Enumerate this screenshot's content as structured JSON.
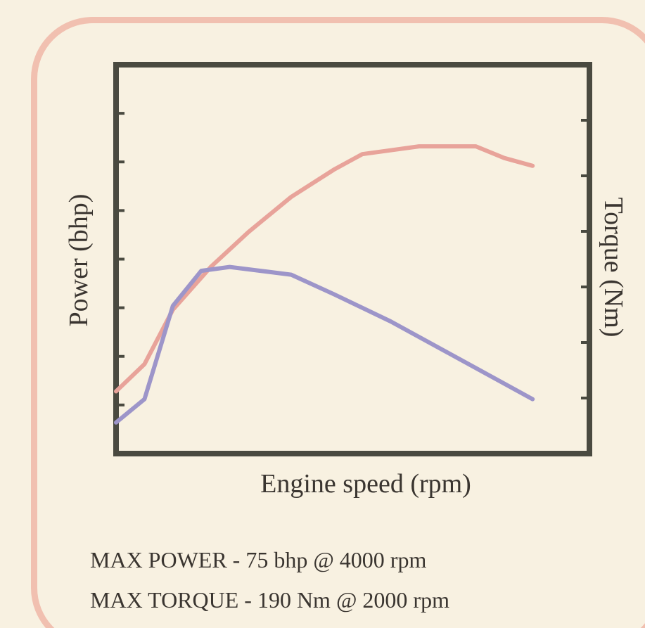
{
  "chart_data": {
    "type": "line",
    "title": "",
    "xlabel": "Engine speed (rpm)",
    "ylabel_left": "Power (bhp)",
    "ylabel_right": "Torque (Nm)",
    "x_tick_labels_visible": false,
    "y_tick_labels_visible": false,
    "grid": false,
    "legend": "none",
    "xlim": [
      0,
      100
    ],
    "ylim_left": [
      0,
      100
    ],
    "ylim_right": [
      0,
      100
    ],
    "series": [
      {
        "axis": "left",
        "color": "#e8a39a",
        "x": [
          0,
          6,
          12,
          20,
          28,
          37,
          46,
          52,
          58,
          64,
          70,
          76,
          82,
          88
        ],
        "y": [
          16,
          23,
          37,
          48,
          57,
          66,
          73,
          77,
          78,
          79,
          79,
          79,
          76,
          74
        ]
      },
      {
        "axis": "right",
        "color": "#9d95c9",
        "x": [
          0,
          6,
          12,
          18,
          24,
          37,
          46,
          58,
          70,
          82,
          88
        ],
        "y": [
          8,
          14,
          38,
          47,
          48,
          46,
          41,
          34,
          26,
          18,
          14
        ]
      }
    ]
  },
  "notes": {
    "max_power": "MAX POWER - 75 bhp @ 4000 rpm",
    "max_torque": "MAX TORQUE - 190 Nm @ 2000 rpm"
  },
  "colors": {
    "background": "#f8f1e1",
    "frame_border": "#f1c0b0",
    "axes": "#4a4a40",
    "text": "#3a3530"
  }
}
